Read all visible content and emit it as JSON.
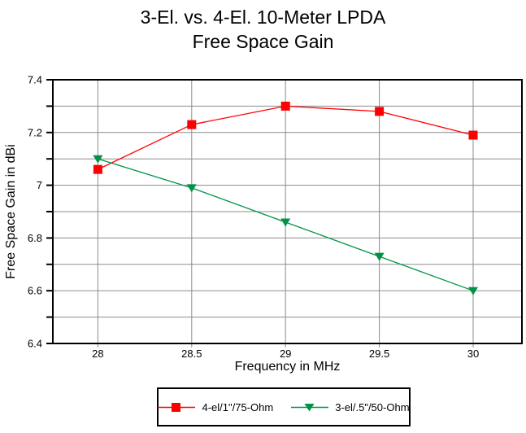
{
  "title": {
    "line1": "3-El. vs. 4-El. 10-Meter LPDA",
    "line2": "Free Space Gain"
  },
  "chart_data": {
    "type": "line",
    "title": "3-El. vs. 4-El. 10-Meter LPDA Free Space Gain",
    "xlabel": "Frequency in MHz",
    "ylabel": "Free Space Gain in dBi",
    "x": [
      28,
      28.5,
      29,
      29.5,
      30
    ],
    "x_tick_labels": [
      "28",
      "28.5",
      "29",
      "29.5",
      "30"
    ],
    "xlim": [
      27.76,
      30.26
    ],
    "ylim": [
      6.4,
      7.4
    ],
    "y_grid_step": 0.1,
    "y_major_ticks": [
      6.4,
      6.6,
      6.8,
      7.0,
      7.2,
      7.4
    ],
    "y_tick_labels": [
      "6.4",
      "6.6",
      "6.8",
      "7",
      "7.2",
      "7.4"
    ],
    "grid": true,
    "grid_color": "#8c8c8c",
    "axis_color": "#000000",
    "legend_position": "bottom",
    "series": [
      {
        "name": "4-el/1\"/75-Ohm",
        "color": "#ff0000",
        "marker": "square",
        "values": [
          7.06,
          7.23,
          7.3,
          7.28,
          7.19
        ]
      },
      {
        "name": "3-el/.5\"/50-Ohm",
        "color": "#009245",
        "marker": "triangle-down",
        "values": [
          7.1,
          6.99,
          6.86,
          6.73,
          6.6
        ]
      }
    ]
  }
}
